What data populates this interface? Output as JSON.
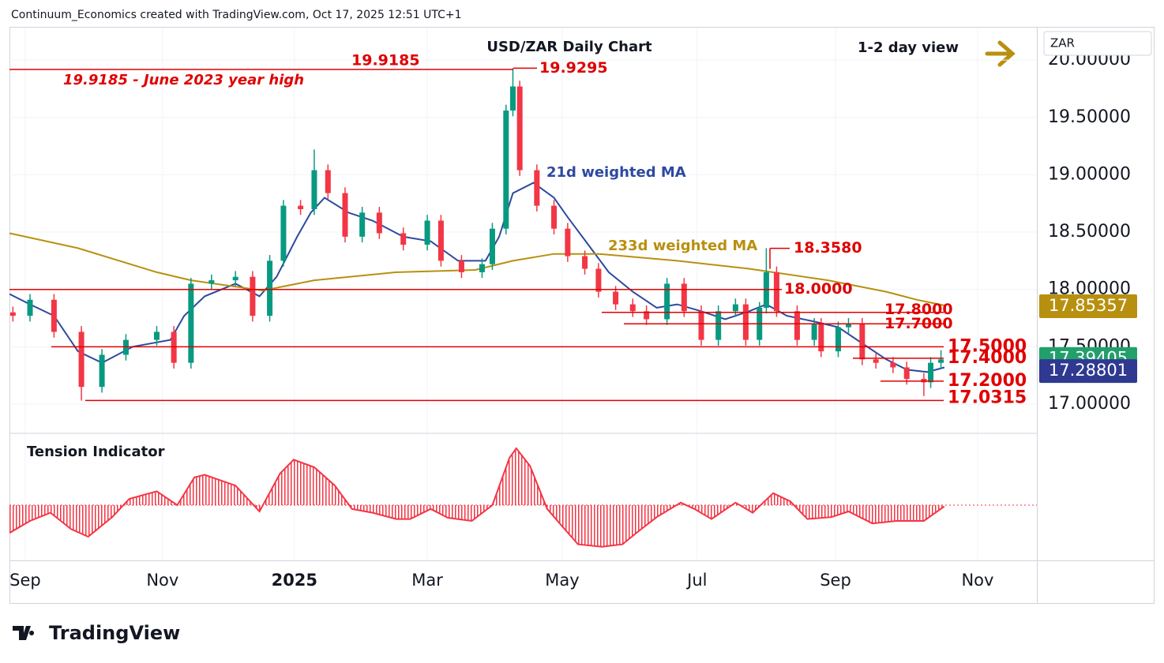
{
  "header": {
    "credit": "Continuum_Economics created with TradingView.com, Oct 17, 2025 12:51 UTC+1"
  },
  "footer": {
    "brand": "TradingView"
  },
  "chart_data": {
    "type": "candlestick",
    "title": "USD/ZAR Daily Chart",
    "view": "1-2 day view",
    "currency": "ZAR",
    "up_color": "#089981",
    "down_color": "#f23645",
    "x": [
      1,
      6,
      13,
      21,
      27,
      34,
      43,
      48,
      53,
      59,
      66,
      71,
      76,
      80,
      85,
      89,
      93,
      98,
      103,
      108,
      115,
      122,
      126,
      132,
      138,
      141,
      145,
      147,
      149,
      154,
      159,
      163,
      168,
      172,
      177,
      182,
      186,
      192,
      197,
      202,
      207,
      212,
      215,
      219,
      221,
      224,
      230,
      235,
      237,
      242,
      245,
      249,
      253,
      258,
      262,
      267,
      269,
      272
    ],
    "open": [
      17.8,
      17.77,
      17.91,
      17.63,
      17.15,
      17.43,
      17.56,
      17.63,
      17.36,
      18.05,
      18.08,
      18.11,
      17.77,
      18.25,
      18.73,
      18.7,
      19.04,
      18.84,
      18.46,
      18.67,
      18.49,
      18.39,
      18.6,
      18.25,
      18.15,
      18.22,
      18.53,
      19.56,
      19.77,
      19.04,
      18.73,
      18.53,
      18.29,
      18.18,
      17.98,
      17.87,
      17.81,
      17.74,
      18.05,
      17.81,
      17.56,
      17.81,
      17.87,
      17.56,
      17.84,
      18.15,
      17.81,
      17.56,
      17.7,
      17.46,
      17.67,
      17.7,
      17.39,
      17.36,
      17.32,
      17.22,
      17.19,
      17.36
    ],
    "high": [
      17.85,
      17.96,
      17.96,
      17.68,
      17.48,
      17.61,
      17.68,
      17.68,
      18.1,
      18.13,
      18.16,
      18.16,
      18.3,
      18.78,
      18.78,
      19.22,
      19.09,
      18.89,
      18.72,
      18.72,
      18.54,
      18.65,
      18.65,
      18.3,
      18.27,
      18.58,
      19.61,
      19.93,
      19.82,
      19.09,
      18.78,
      18.58,
      18.34,
      18.23,
      18.03,
      17.92,
      17.86,
      18.1,
      18.1,
      17.86,
      17.86,
      17.92,
      17.92,
      17.89,
      18.36,
      18.2,
      17.86,
      17.75,
      17.75,
      17.72,
      17.75,
      17.75,
      17.44,
      17.41,
      17.37,
      17.27,
      17.41,
      17.47
    ],
    "low": [
      17.72,
      17.72,
      17.58,
      17.03,
      17.1,
      17.38,
      17.51,
      17.31,
      17.31,
      18.0,
      18.03,
      17.72,
      17.72,
      18.2,
      18.65,
      18.65,
      18.79,
      18.41,
      18.41,
      18.44,
      18.34,
      18.34,
      18.2,
      18.1,
      18.1,
      18.17,
      18.48,
      19.51,
      18.99,
      18.68,
      18.48,
      18.24,
      18.13,
      17.93,
      17.82,
      17.76,
      17.69,
      17.69,
      17.76,
      17.51,
      17.51,
      17.76,
      17.51,
      17.51,
      17.79,
      17.76,
      17.51,
      17.51,
      17.41,
      17.41,
      17.62,
      17.34,
      17.31,
      17.27,
      17.17,
      17.07,
      17.14,
      17.31
    ],
    "close": [
      17.77,
      17.91,
      17.63,
      17.15,
      17.43,
      17.56,
      17.63,
      17.36,
      18.05,
      18.08,
      18.11,
      17.77,
      18.25,
      18.73,
      18.7,
      19.04,
      18.84,
      18.46,
      18.67,
      18.49,
      18.39,
      18.6,
      18.25,
      18.15,
      18.22,
      18.53,
      19.56,
      19.77,
      19.04,
      18.73,
      18.53,
      18.29,
      18.18,
      17.98,
      17.87,
      17.81,
      17.74,
      18.05,
      17.81,
      17.56,
      17.81,
      17.87,
      17.56,
      17.84,
      18.15,
      17.81,
      17.56,
      17.7,
      17.46,
      17.67,
      17.7,
      17.39,
      17.36,
      17.32,
      17.22,
      17.19,
      17.36,
      17.39
    ],
    "xlim": [
      0,
      300
    ],
    "xticks": [
      {
        "value": 4.6,
        "label": "Sep"
      },
      {
        "value": 44.7,
        "label": "Nov"
      },
      {
        "value": 83.2,
        "label": "2025"
      },
      {
        "value": 122,
        "label": "Mar"
      },
      {
        "value": 161.4,
        "label": "May"
      },
      {
        "value": 200.8,
        "label": "Jul"
      },
      {
        "value": 241.2,
        "label": "Sep"
      },
      {
        "value": 282.7,
        "label": "Nov"
      }
    ],
    "ylim": [
      16.752,
      20.29
    ],
    "yticks": [
      {
        "value": 17,
        "label": "17.00000"
      },
      {
        "value": 17.5,
        "label": "17.50000"
      },
      {
        "value": 18,
        "label": "18.00000"
      },
      {
        "value": 18.5,
        "label": "18.50000"
      },
      {
        "value": 19,
        "label": "19.00000"
      },
      {
        "value": 19.5,
        "label": "19.50000"
      },
      {
        "value": 20,
        "label": "20.00000"
      }
    ],
    "moving_averages": [
      {
        "name": "21d weighted MA",
        "color": "#2e4a9e",
        "x": [
          0,
          6,
          13,
          20,
          27,
          36,
          47,
          51,
          57,
          66,
          73,
          78,
          84,
          88,
          92,
          99,
          106,
          115,
          123,
          131,
          139,
          143,
          147,
          153,
          159,
          163,
          169,
          175,
          182,
          189,
          195,
          202,
          209,
          216,
          221,
          227,
          235,
          242,
          249,
          256,
          262,
          268,
          273
        ],
        "values": [
          17.96,
          17.87,
          17.77,
          17.46,
          17.36,
          17.5,
          17.56,
          17.77,
          17.94,
          18.05,
          17.94,
          18.11,
          18.46,
          18.67,
          18.8,
          18.67,
          18.6,
          18.46,
          18.42,
          18.25,
          18.25,
          18.46,
          18.84,
          18.93,
          18.8,
          18.63,
          18.39,
          18.15,
          17.98,
          17.84,
          17.87,
          17.81,
          17.74,
          17.81,
          17.87,
          17.77,
          17.72,
          17.67,
          17.53,
          17.39,
          17.3,
          17.28,
          17.32
        ]
      },
      {
        "name": "233d weighted MA",
        "color": "#b8900f",
        "x": [
          0,
          20,
          43,
          53,
          74,
          89,
          113,
          136,
          147,
          159,
          172,
          195,
          216,
          239,
          256,
          265,
          273
        ],
        "values": [
          18.49,
          18.36,
          18.15,
          18.08,
          17.99,
          18.08,
          18.15,
          18.17,
          18.25,
          18.31,
          18.31,
          18.25,
          18.18,
          18.08,
          17.98,
          17.91,
          17.86
        ]
      }
    ],
    "level_color": "#e00000",
    "levels": [
      {
        "value": 19.9295,
        "label": "19.9295"
      },
      {
        "value": 19.9185,
        "label": "19.9185"
      },
      {
        "value": 18.358,
        "label": "18.3580"
      },
      {
        "value": 18.0,
        "label": "18.0000"
      },
      {
        "value": 17.8,
        "label": "17.8000"
      },
      {
        "value": 17.7,
        "label": "17.7000"
      },
      {
        "value": 17.5,
        "label": "17.5000"
      },
      {
        "value": 17.4,
        "label": "17.4000"
      },
      {
        "value": 17.2,
        "label": "17.2000"
      },
      {
        "value": 17.0315,
        "label": "17.0315"
      }
    ],
    "annotation": "19.9185 - June 2023 year high",
    "price_labels": [
      {
        "value": 17.85357,
        "label": "17.85357",
        "color": "#b8900f"
      },
      {
        "value": 17.39405,
        "label": "17.39405",
        "color": "#22a06b"
      },
      {
        "value": 17.28801,
        "label": "17.28801",
        "color": "#2f3990"
      }
    ],
    "indicator": {
      "name": "Tension Indicator",
      "color": "#f23645",
      "ylim": [
        -1,
        1
      ],
      "x": [
        0,
        6,
        12,
        18,
        23,
        30,
        35,
        43,
        49,
        54,
        57,
        66,
        73,
        79,
        83,
        89,
        95,
        100,
        106,
        113,
        117,
        123,
        128,
        135,
        141,
        146,
        148,
        152,
        157,
        161,
        166,
        173,
        179,
        184,
        189,
        196,
        200,
        205,
        212,
        217,
        223,
        228,
        233,
        240,
        245,
        252,
        259,
        267,
        273
      ],
      "values": [
        -0.44,
        -0.25,
        -0.12,
        -0.38,
        -0.5,
        -0.19,
        0.1,
        0.22,
        0,
        0.44,
        0.48,
        0.31,
        -0.1,
        0.5,
        0.72,
        0.6,
        0.31,
        -0.06,
        -0.12,
        -0.22,
        -0.22,
        -0.06,
        -0.2,
        -0.25,
        0,
        0.75,
        0.9,
        0.62,
        -0.06,
        -0.31,
        -0.62,
        -0.66,
        -0.62,
        -0.4,
        -0.19,
        0.04,
        -0.06,
        -0.22,
        0.04,
        -0.12,
        0.19,
        0.06,
        -0.22,
        -0.19,
        -0.1,
        -0.29,
        -0.25,
        -0.25,
        -0.02
      ]
    }
  }
}
